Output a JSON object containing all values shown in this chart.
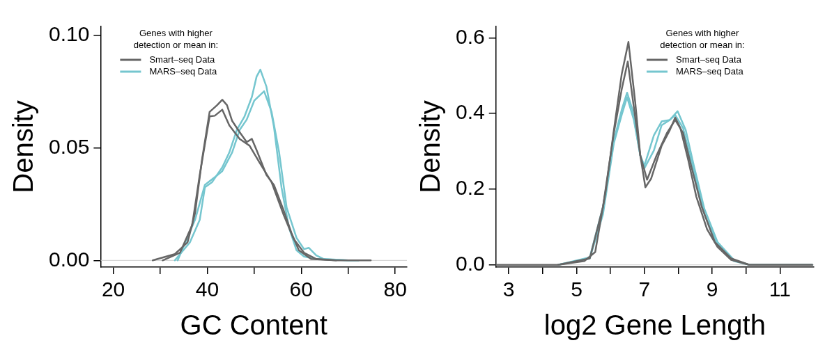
{
  "chart_data": [
    {
      "type": "line",
      "xlabel": "GC Content",
      "ylabel": "Density",
      "legend_title": "Genes with higher detection or mean in:",
      "legend": "top left",
      "grid": false,
      "marker": "none",
      "line_style": "solid",
      "xlim": [
        17.3,
        82.5
      ],
      "xticks": [
        20,
        {
          "value": 30,
          "label": null
        },
        40,
        {
          "value": 50,
          "label": null
        },
        60,
        {
          "value": 70,
          "label": null
        },
        80
      ],
      "ylim": [
        -0.003,
        0.104
      ],
      "yticks": [
        {
          "value": 0,
          "label": "0.00"
        },
        {
          "value": 0.05,
          "label": "0.05"
        },
        {
          "value": 0.1,
          "label": "0.10"
        }
      ],
      "ref_lines": [
        {
          "axis": "y",
          "value": 0,
          "color": "#cccccc"
        }
      ],
      "series": [
        {
          "name": "Smart–seq Data",
          "color": "#666666",
          "x": [
            28.4,
            33.1,
            35.8,
            37.4,
            38.9,
            40.5,
            42.1,
            43.2,
            44.2,
            45.3,
            46.9,
            48.4,
            49.5,
            50.5,
            52.6,
            54.2,
            56.3,
            57.9,
            59.5,
            62.1,
            67.4,
            74.8
          ],
          "values": [
            0,
            0.0028,
            0.008,
            0.021,
            0.045,
            0.066,
            0.069,
            0.0714,
            0.069,
            0.062,
            0.057,
            0.0526,
            0.054,
            0.049,
            0.038,
            0.0335,
            0.022,
            0.0123,
            0.0045,
            0.0006,
            0,
            0
          ]
        },
        {
          "color": "#666666",
          "x": [
            30.5,
            34.2,
            36.8,
            38.4,
            40.5,
            41.6,
            43.2,
            44.7,
            46.9,
            49.0,
            51.1,
            53.7,
            56.3,
            58.4,
            60.6,
            63.2,
            67.4
          ],
          "values": [
            0,
            0.0034,
            0.0157,
            0.038,
            0.064,
            0.0643,
            0.067,
            0.06,
            0.054,
            0.051,
            0.0436,
            0.0347,
            0.02,
            0.0095,
            0.0034,
            0.0006,
            0
          ]
        },
        {
          "name": "MARS–seq Data",
          "color": "#75c6cf",
          "x": [
            33.1,
            36.3,
            38.4,
            39.5,
            41.0,
            43.2,
            44.7,
            46.3,
            47.9,
            49.5,
            50.5,
            51.3,
            52.6,
            54.2,
            55.8,
            57.4,
            59.0,
            60.6,
            63.2,
            70.0,
            72.2
          ],
          "values": [
            0,
            0.008,
            0.018,
            0.0325,
            0.0347,
            0.0414,
            0.048,
            0.058,
            0.0638,
            0.0727,
            0.0817,
            0.0848,
            0.0772,
            0.0593,
            0.0325,
            0.0145,
            0.0045,
            0.0017,
            0.0006,
            0,
            0
          ]
        },
        {
          "color": "#75c6cf",
          "x": [
            33.7,
            37.4,
            39.5,
            41.6,
            43.2,
            45.3,
            46.9,
            48.4,
            50.0,
            52.1,
            53.7,
            55.3,
            56.9,
            59.0,
            60.6,
            61.6,
            63.2,
            64.8,
            70.0,
            72.2
          ],
          "values": [
            0,
            0.018,
            0.0336,
            0.037,
            0.0397,
            0.048,
            0.058,
            0.0626,
            0.071,
            0.0752,
            0.066,
            0.048,
            0.0235,
            0.01,
            0.005,
            0.0056,
            0.0022,
            0.0006,
            0,
            0
          ]
        }
      ]
    },
    {
      "type": "line",
      "xlabel": "log2 Gene Length",
      "ylabel": "Density",
      "legend_title": "Genes with higher detection or mean in:",
      "legend": "top right",
      "grid": false,
      "marker": "none",
      "line_style": "solid",
      "xlim": [
        2.62,
        12.0
      ],
      "xticks": [
        3,
        {
          "value": 4,
          "label": null
        },
        5,
        {
          "value": 6,
          "label": null
        },
        7,
        {
          "value": 8,
          "label": null
        },
        9,
        {
          "value": 10,
          "label": null
        },
        11
      ],
      "ylim": [
        -0.006,
        0.63
      ],
      "yticks": [
        {
          "value": 0,
          "label": "0.0"
        },
        {
          "value": 0.2,
          "label": "0.2"
        },
        {
          "value": 0.4,
          "label": "0.4"
        },
        {
          "value": 0.6,
          "label": "0.6"
        }
      ],
      "ref_lines": [
        {
          "axis": "y",
          "value": 0,
          "color": "#cccccc"
        }
      ],
      "series": [
        {
          "name": "Smart–seq Data",
          "color": "#666666",
          "x": [
            2.62,
            4.45,
            5.23,
            5.55,
            5.86,
            6.1,
            6.33,
            6.53,
            6.73,
            6.88,
            7.03,
            7.2,
            7.51,
            7.75,
            7.91,
            8.06,
            8.3,
            8.53,
            8.85,
            9.16,
            9.56,
            10.1,
            11.95
          ],
          "values": [
            0,
            0,
            0.01,
            0.034,
            0.195,
            0.356,
            0.503,
            0.589,
            0.43,
            0.289,
            0.205,
            0.228,
            0.315,
            0.356,
            0.389,
            0.362,
            0.275,
            0.181,
            0.094,
            0.047,
            0.013,
            0,
            0
          ]
        },
        {
          "color": "#666666",
          "x": [
            4.45,
            5.39,
            5.78,
            6.1,
            6.33,
            6.51,
            6.69,
            6.88,
            7.08,
            7.36,
            7.67,
            7.91,
            8.14,
            8.38,
            8.69,
            9.08,
            9.56,
            10.1,
            11.95
          ],
          "values": [
            0,
            0.017,
            0.154,
            0.349,
            0.463,
            0.537,
            0.416,
            0.289,
            0.225,
            0.289,
            0.349,
            0.383,
            0.349,
            0.262,
            0.154,
            0.06,
            0.017,
            0,
            0
          ]
        },
        {
          "name": "MARS–seq Data",
          "color": "#75c6cf",
          "x": [
            4.45,
            5.39,
            5.78,
            6.1,
            6.33,
            6.49,
            6.65,
            6.88,
            7.0,
            7.28,
            7.51,
            7.75,
            7.98,
            8.22,
            8.46,
            8.77,
            9.16,
            9.64,
            10.1,
            11.95
          ],
          "values": [
            0,
            0.02,
            0.154,
            0.329,
            0.409,
            0.455,
            0.409,
            0.289,
            0.255,
            0.302,
            0.369,
            0.383,
            0.406,
            0.356,
            0.262,
            0.148,
            0.06,
            0.013,
            0,
            0
          ]
        },
        {
          "color": "#75c6cf",
          "x": [
            4.45,
            5.39,
            5.78,
            6.1,
            6.33,
            6.49,
            6.69,
            6.88,
            7.0,
            7.28,
            7.51,
            7.75,
            7.91,
            8.14,
            8.46,
            8.77,
            9.16,
            9.64,
            10.1,
            11.95
          ],
          "values": [
            0,
            0.017,
            0.134,
            0.322,
            0.396,
            0.443,
            0.383,
            0.289,
            0.262,
            0.342,
            0.379,
            0.383,
            0.396,
            0.362,
            0.248,
            0.134,
            0.054,
            0.01,
            0,
            0
          ]
        }
      ]
    }
  ]
}
